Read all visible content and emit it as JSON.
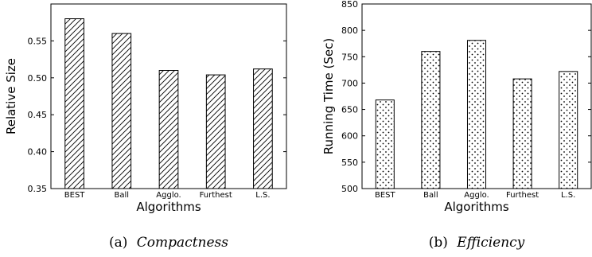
{
  "chart_data": [
    {
      "type": "bar",
      "categories": [
        "BEST",
        "Ball",
        "Agglo.",
        "Furthest",
        "L.S."
      ],
      "values": [
        0.58,
        0.56,
        0.51,
        0.504,
        0.512
      ],
      "xlabel": "Algorithms",
      "ylabel": "Relative Size",
      "ylim": [
        0.35,
        0.6
      ],
      "yticks": [
        "0.35",
        "0.40",
        "0.45",
        "0.50",
        "0.55"
      ],
      "pattern": "diagonal-hatch",
      "caption_prefix": "(a)",
      "caption_title": "Compactness"
    },
    {
      "type": "bar",
      "categories": [
        "BEST",
        "Ball",
        "Agglo.",
        "Furthest",
        "L.S."
      ],
      "values": [
        668,
        760,
        781,
        708,
        722
      ],
      "xlabel": "Algorithms",
      "ylabel": "Running Time (Sec)",
      "ylim": [
        500,
        850
      ],
      "yticks": [
        "500",
        "550",
        "600",
        "650",
        "700",
        "750",
        "800",
        "850"
      ],
      "pattern": "dots",
      "caption_prefix": "(b)",
      "caption_title": "Efficiency"
    }
  ]
}
